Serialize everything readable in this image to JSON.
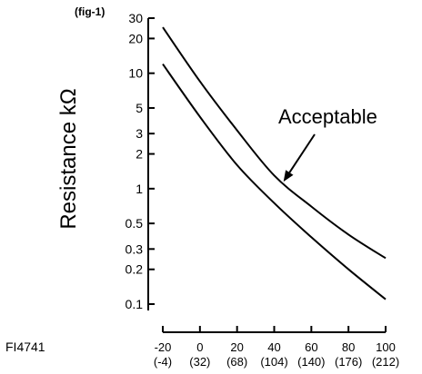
{
  "fig_label": "(fig-1)",
  "figure_code": "FI4741",
  "chart_data": {
    "type": "line",
    "title": "",
    "xlabel": "",
    "ylabel": "Resistance kΩ",
    "yscale": "log",
    "xlim": [
      -20,
      100
    ],
    "ylim": [
      0.1,
      30
    ],
    "grid": false,
    "x_ticks": [
      -20,
      0,
      20,
      40,
      60,
      80,
      100
    ],
    "x_tick_labels": [
      "-20",
      "0",
      "20",
      "40",
      "60",
      "80",
      "100"
    ],
    "x_tick_sublabels": [
      "(-4)",
      "(32)",
      "(68)",
      "(104)",
      "(140)",
      "(176)",
      "(212)"
    ],
    "y_ticks": [
      0.1,
      0.2,
      0.3,
      0.5,
      1,
      2,
      3,
      5,
      10,
      20,
      30
    ],
    "y_tick_labels": [
      "0.1",
      "0.2",
      "0.3",
      "0.5",
      "1",
      "2",
      "3",
      "5",
      "10",
      "20",
      "30"
    ],
    "series": [
      {
        "x": [
          -20,
          0,
          20,
          40,
          60,
          80,
          100
        ],
        "values": [
          25,
          8.5,
          3.2,
          1.3,
          0.7,
          0.4,
          0.25
        ]
      },
      {
        "x": [
          -20,
          0,
          20,
          40,
          60,
          80,
          100
        ],
        "values": [
          12,
          4.2,
          1.6,
          0.75,
          0.38,
          0.2,
          0.11
        ]
      }
    ],
    "annotations": [
      {
        "text": "Acceptable",
        "arrow_to": {
          "x": 45,
          "y": 1.15
        }
      }
    ]
  }
}
